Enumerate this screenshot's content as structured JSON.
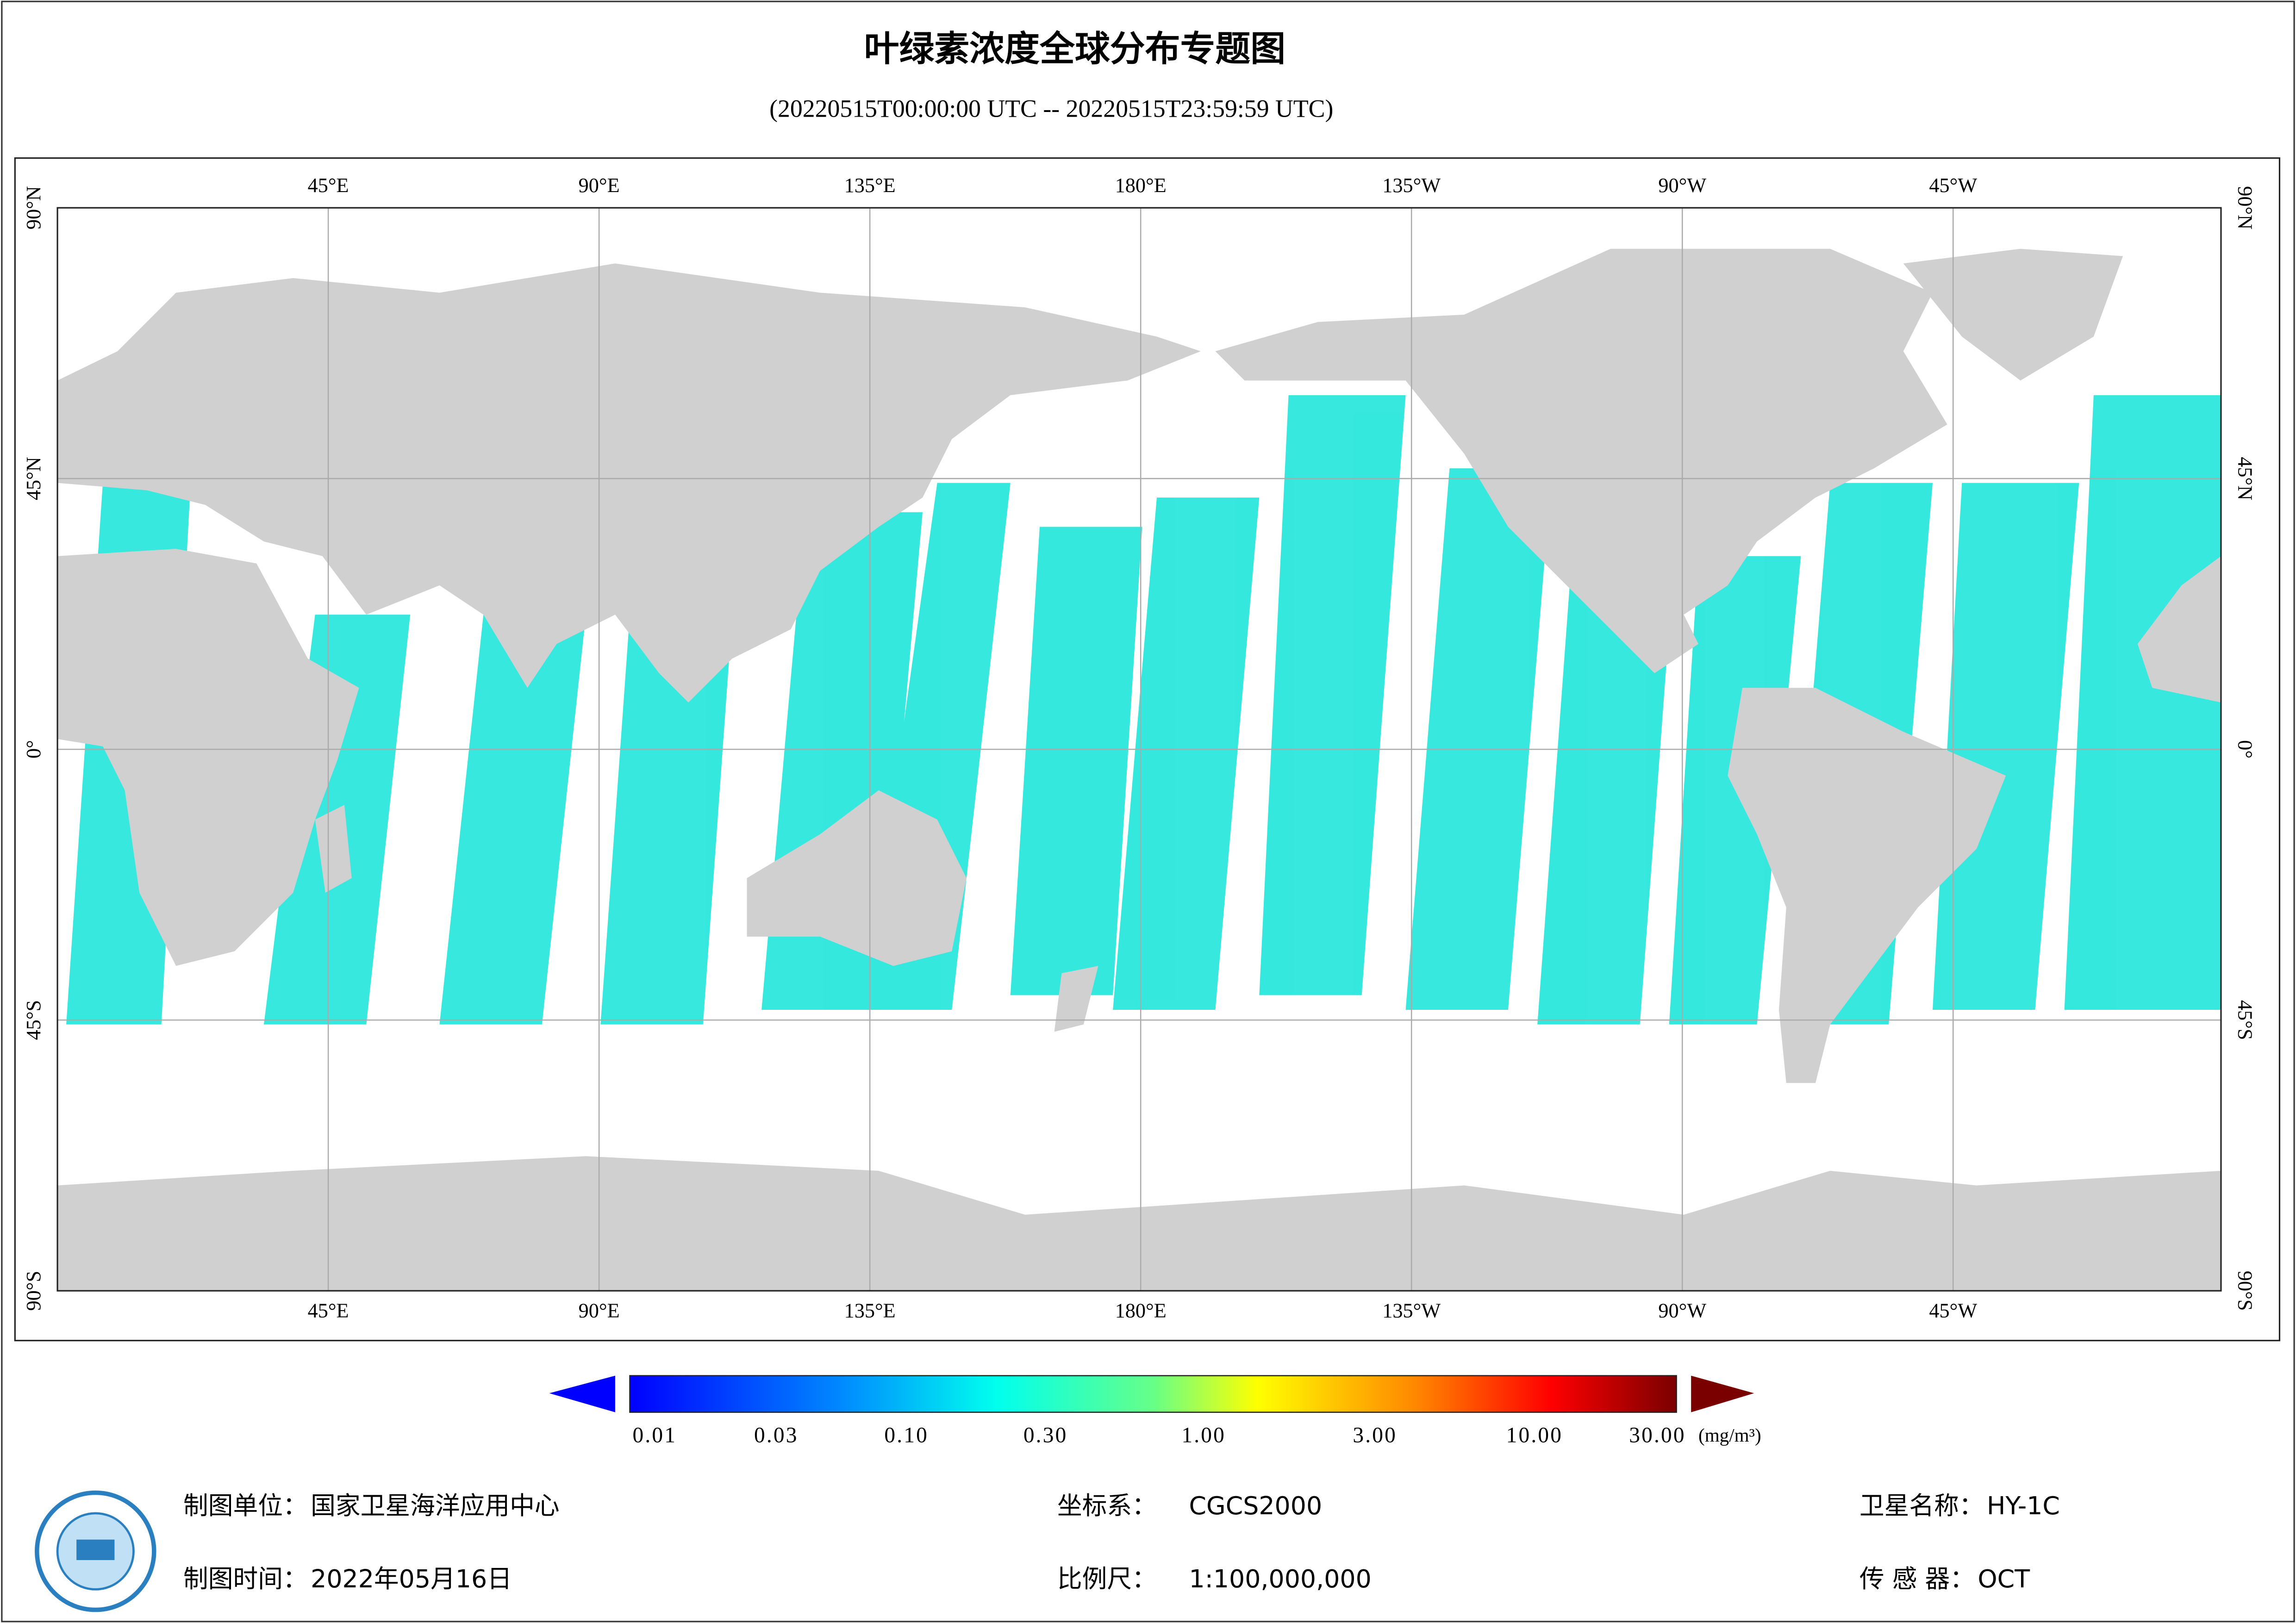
{
  "header": {
    "title": "叶绿素浓度全球分布专题图",
    "subtitle": "(20220515T00:00:00 UTC -- 20220515T23:59:59 UTC)"
  },
  "map": {
    "lon_labels": [
      "45°E",
      "90°E",
      "135°E",
      "180°E",
      "135°W",
      "90°W",
      "45°W"
    ],
    "lat_labels": [
      "90°N",
      "45°N",
      "0°",
      "45°S",
      "90°S"
    ]
  },
  "colorbar": {
    "tick_labels": [
      "0.01",
      "0.03",
      "0.10",
      "0.30",
      "1.00",
      "3.00",
      "10.00",
      "30.00"
    ],
    "unit": "(mg/m³)"
  },
  "footer": {
    "fields": [
      {
        "label": "制图单位：",
        "value": "国家卫星海洋应用中心"
      },
      {
        "label": "制图时间：",
        "value": "2022年05月16日"
      },
      {
        "label": "坐标系：",
        "value": "CGCS2000"
      },
      {
        "label": "比例尺：",
        "value": "1:100,000,000"
      },
      {
        "label": "卫星名称：",
        "value": "HY-1C"
      },
      {
        "label": "传 感 器：",
        "value": "OCT"
      }
    ]
  }
}
